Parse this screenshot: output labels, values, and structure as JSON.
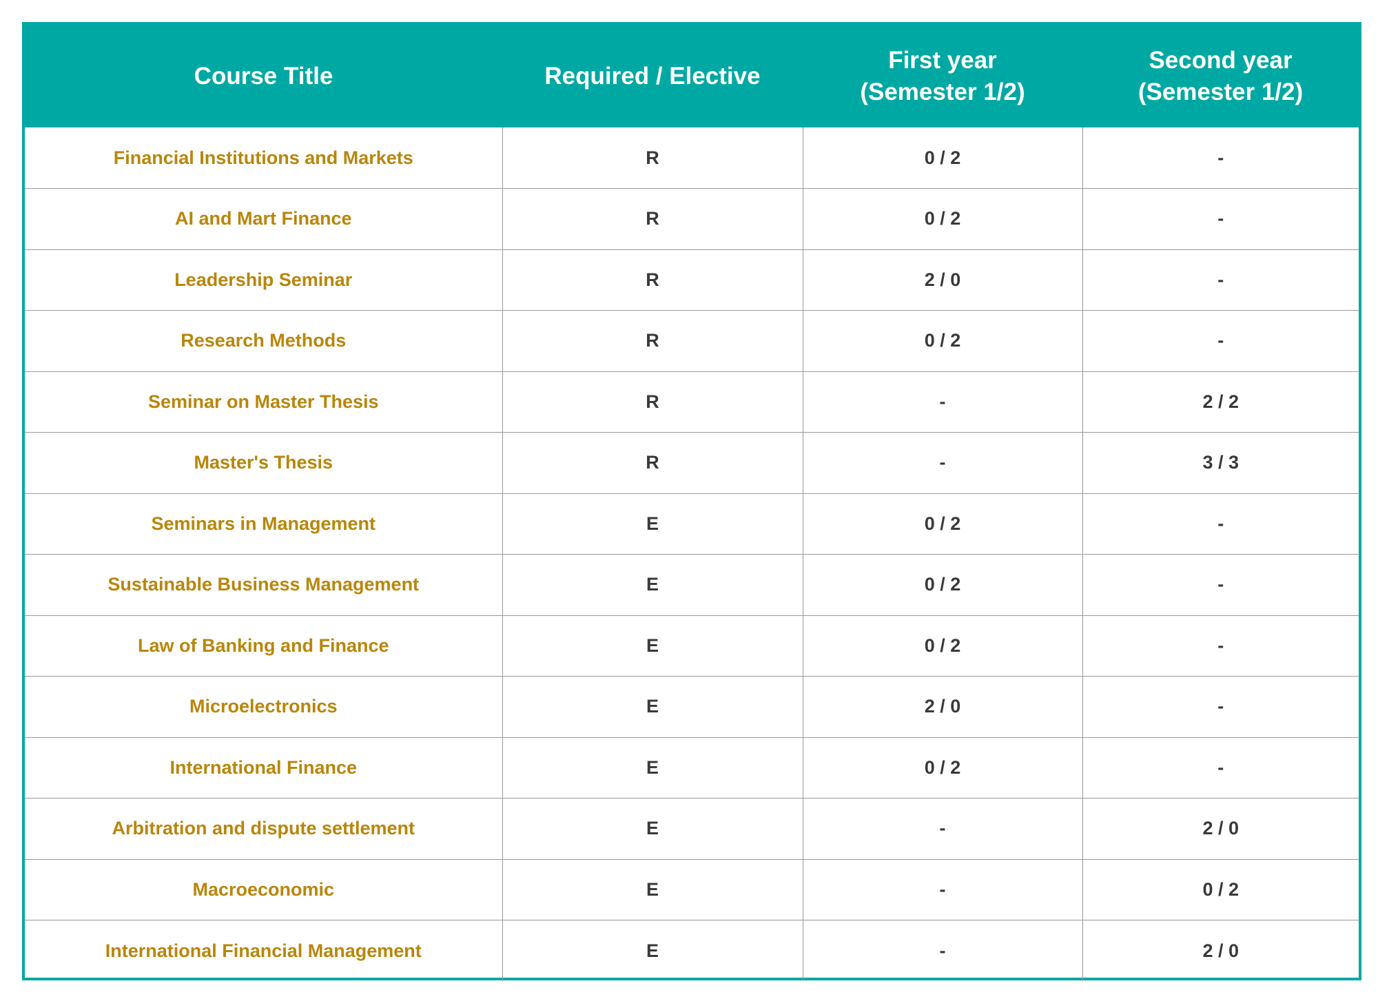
{
  "colors": {
    "header_background": "#00a8a3",
    "header_text": "#ffffff",
    "course_title_text": "#b8860b",
    "cell_text": "#3a3a3a",
    "grid_lines": "#9a9a9a"
  },
  "table": {
    "headers": {
      "course_title": "Course Title",
      "required_elective": "Required / Elective",
      "first_year_line1": "First year",
      "first_year_line2": "(Semester 1/2)",
      "second_year_line1": "Second year",
      "second_year_line2": "(Semester 1/2)"
    },
    "rows": [
      {
        "title": "Financial Institutions and Markets",
        "type": "R",
        "first_year": "0 / 2",
        "second_year": "-"
      },
      {
        "title": "AI and Mart Finance",
        "type": "R",
        "first_year": "0 / 2",
        "second_year": "-"
      },
      {
        "title": "Leadership Seminar",
        "type": "R",
        "first_year": "2 / 0",
        "second_year": "-"
      },
      {
        "title": "Research Methods",
        "type": "R",
        "first_year": "0 / 2",
        "second_year": "-"
      },
      {
        "title": "Seminar on Master Thesis",
        "type": "R",
        "first_year": "-",
        "second_year": "2 / 2"
      },
      {
        "title": "Master's Thesis",
        "type": "R",
        "first_year": "-",
        "second_year": "3 / 3"
      },
      {
        "title": "Seminars in Management",
        "type": "E",
        "first_year": "0 / 2",
        "second_year": "-"
      },
      {
        "title": "Sustainable Business Management",
        "type": "E",
        "first_year": "0 / 2",
        "second_year": "-"
      },
      {
        "title": "Law of Banking and Finance",
        "type": "E",
        "first_year": "0 / 2",
        "second_year": "-"
      },
      {
        "title": "Microelectronics",
        "type": "E",
        "first_year": "2 / 0",
        "second_year": "-"
      },
      {
        "title": "International Finance",
        "type": "E",
        "first_year": "0 / 2",
        "second_year": "-"
      },
      {
        "title": "Arbitration and dispute settlement",
        "type": "E",
        "first_year": "-",
        "second_year": "2 / 0"
      },
      {
        "title": "Macroeconomic",
        "type": "E",
        "first_year": "-",
        "second_year": "0 / 2"
      },
      {
        "title": "International Financial Management",
        "type": "E",
        "first_year": "-",
        "second_year": "2 / 0"
      }
    ]
  }
}
